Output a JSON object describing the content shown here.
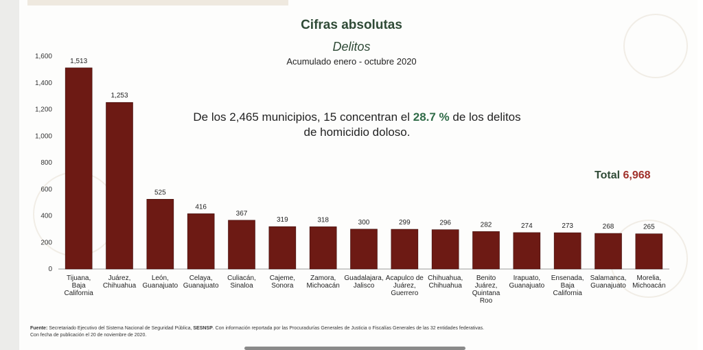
{
  "header": {
    "title": "Cifras absolutas",
    "subtitle": "Delitos",
    "period": "Acumulado enero - octubre 2020"
  },
  "headline": {
    "text_before": "De los 2,465 municipios, 15 concentran el ",
    "highlight": "28.7 %",
    "text_after": " de los delitos de homicidio doloso."
  },
  "total": {
    "label": "Total ",
    "value": "6,968"
  },
  "footer": {
    "source_label": "Fuente:",
    "source_text_1": " Secretariado Ejecutivo del Sistema Nacional de Seguridad Pública, ",
    "source_bold": "SESNSP",
    "source_text_2": ". Con información reportada por las Procuradurías Generales de Justicia o Fiscalías Generales de las 32 entidades federativas.",
    "publication": "Con fecha de publicación el 20 de noviembre de 2020."
  },
  "colors": {
    "bar": "#6d1a14",
    "title": "#2f4a36",
    "highlight": "#2f6b47",
    "total_value": "#a0302a"
  },
  "chart_data": {
    "type": "bar",
    "categories": [
      [
        "Tijuana,",
        "Baja",
        "California"
      ],
      [
        "Juárez,",
        "Chihuahua"
      ],
      [
        "León,",
        "Guanajuato"
      ],
      [
        "Celaya,",
        "Guanajuato"
      ],
      [
        "Culiacán,",
        "Sinaloa"
      ],
      [
        "Cajeme,",
        "Sonora"
      ],
      [
        "Zamora,",
        "Michoacán"
      ],
      [
        "Guadalajara,",
        "Jalisco"
      ],
      [
        "Acapulco de",
        "Juárez,",
        "Guerrero"
      ],
      [
        "Chihuahua,",
        "Chihuahua"
      ],
      [
        "Benito",
        "Juárez,",
        "Quintana",
        "Roo"
      ],
      [
        "Irapuato,",
        "Guanajuato"
      ],
      [
        "Ensenada,",
        "Baja",
        "California"
      ],
      [
        "Salamanca,",
        "Guanajuato"
      ],
      [
        "Morelia,",
        "Michoacán"
      ]
    ],
    "values": [
      1513,
      1253,
      525,
      416,
      367,
      319,
      318,
      300,
      299,
      296,
      282,
      274,
      273,
      268,
      265
    ],
    "value_labels": [
      "1,513",
      "1,253",
      "525",
      "416",
      "367",
      "319",
      "318",
      "300",
      "299",
      "296",
      "282",
      "274",
      "273",
      "268",
      "265"
    ],
    "y_ticks": [
      "0",
      "200",
      "400",
      "600",
      "800",
      "1,000",
      "1,200",
      "1,400",
      "1,600"
    ],
    "ylim": [
      0,
      1600
    ],
    "grid": false,
    "legend": "none"
  }
}
